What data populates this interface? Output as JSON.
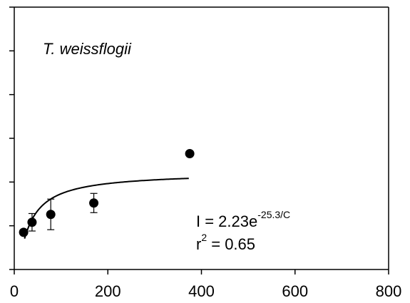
{
  "chart_data": {
    "type": "scatter",
    "title": "T. weissflogii",
    "xlabel": "",
    "ylabel": "",
    "xlim": [
      0,
      800
    ],
    "ylim": [
      0,
      6
    ],
    "x_ticks": [
      "0",
      "200",
      "400",
      "600",
      "800"
    ],
    "y_ticks": [
      0,
      1,
      2,
      3,
      4,
      5,
      6
    ],
    "grid": false,
    "points": [
      {
        "x": 20,
        "y": 0.85,
        "err": 0.0
      },
      {
        "x": 38,
        "y": 1.08,
        "err": 0.2
      },
      {
        "x": 78,
        "y": 1.26,
        "err": 0.35
      },
      {
        "x": 170,
        "y": 1.52,
        "err": 0.22
      },
      {
        "x": 375,
        "y": 2.65,
        "err": 0.0
      }
    ],
    "fit": {
      "equation_prefix": "I = 2.23e",
      "equation_exponent": "-25.3/C",
      "r2_prefix": "r",
      "r2_exponent": "2",
      "r2_value": " = 0.65",
      "a": 2.23,
      "b": -25.3,
      "x_start": 22,
      "x_end": 373
    }
  }
}
